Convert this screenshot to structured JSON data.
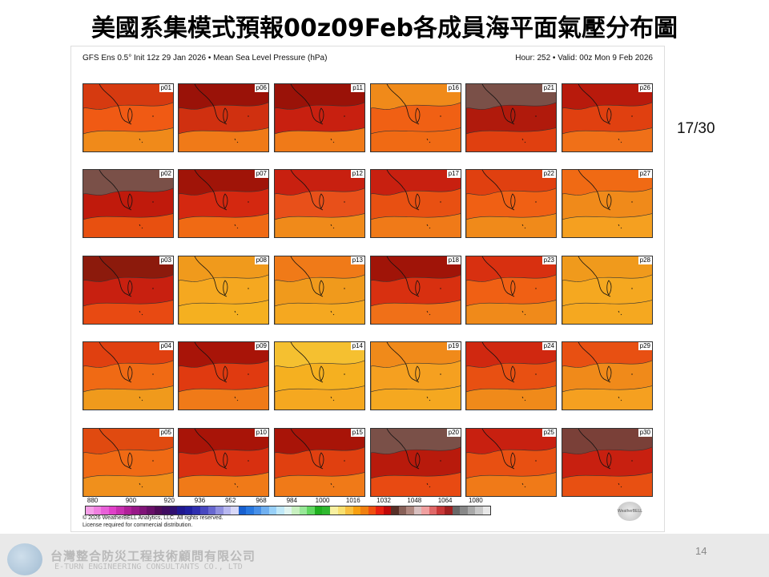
{
  "slide": {
    "title": "美國系集模式預報00z09Feb各成員海平面氣壓分布圖",
    "counter": "17/30",
    "page_number": "14"
  },
  "chart": {
    "header_left": "GFS Ens 0.5° Init 12z 29 Jan 2026 • Mean Sea Level Pressure (hPa)",
    "header_right": "Hour: 252 • Valid: 00z Mon 9 Feb 2026",
    "panels": [
      {
        "label": "p01",
        "colors": [
          "#d63a10",
          "#f05a14",
          "#f08a1a"
        ]
      },
      {
        "label": "p02",
        "colors": [
          "#7a5048",
          "#c01a0c",
          "#e85010"
        ]
      },
      {
        "label": "p03",
        "colors": [
          "#8c1a0c",
          "#c82010",
          "#e84a12"
        ]
      },
      {
        "label": "p04",
        "colors": [
          "#e04010",
          "#f06a14",
          "#f09a1c"
        ]
      },
      {
        "label": "p05",
        "colors": [
          "#e04a10",
          "#f06a14",
          "#f0901c"
        ]
      },
      {
        "label": "p06",
        "colors": [
          "#9a1208",
          "#d03010",
          "#f07a18"
        ]
      },
      {
        "label": "p07",
        "colors": [
          "#a01408",
          "#d42810",
          "#f06a14"
        ]
      },
      {
        "label": "p08",
        "colors": [
          "#f09a1c",
          "#f5a820",
          "#f5b020"
        ]
      },
      {
        "label": "p09",
        "colors": [
          "#a81408",
          "#e03a10",
          "#f07a18"
        ]
      },
      {
        "label": "p10",
        "colors": [
          "#a81408",
          "#d83010",
          "#f07a18"
        ]
      },
      {
        "label": "p11",
        "colors": [
          "#9a1208",
          "#c82010",
          "#f07a18"
        ]
      },
      {
        "label": "p12",
        "colors": [
          "#c82010",
          "#e8501a",
          "#f08a1a"
        ]
      },
      {
        "label": "p13",
        "colors": [
          "#f07a18",
          "#f09a1c",
          "#f5a820"
        ]
      },
      {
        "label": "p14",
        "colors": [
          "#f5c030",
          "#f5b020",
          "#f5a820"
        ]
      },
      {
        "label": "p15",
        "colors": [
          "#a81408",
          "#e04010",
          "#f07a18"
        ]
      },
      {
        "label": "p16",
        "colors": [
          "#f08a1a",
          "#f06014",
          "#f06a14"
        ]
      },
      {
        "label": "p17",
        "colors": [
          "#c82010",
          "#e85012",
          "#f07a18"
        ]
      },
      {
        "label": "p18",
        "colors": [
          "#a01408",
          "#d83010",
          "#f07018"
        ]
      },
      {
        "label": "p19",
        "colors": [
          "#f08a1a",
          "#f5a020",
          "#f5a820"
        ]
      },
      {
        "label": "p20",
        "colors": [
          "#7a5048",
          "#b81a0c",
          "#e84a12"
        ]
      },
      {
        "label": "p21",
        "colors": [
          "#7a5048",
          "#b01a0c",
          "#e04010"
        ]
      },
      {
        "label": "p22",
        "colors": [
          "#e04010",
          "#f06014",
          "#f08a1a"
        ]
      },
      {
        "label": "p23",
        "colors": [
          "#d83010",
          "#f06014",
          "#f08a1a"
        ]
      },
      {
        "label": "p24",
        "colors": [
          "#d02810",
          "#e85012",
          "#f08a1a"
        ]
      },
      {
        "label": "p25",
        "colors": [
          "#c82010",
          "#e85012",
          "#f07a18"
        ]
      },
      {
        "label": "p26",
        "colors": [
          "#b81a0c",
          "#e04010",
          "#f07018"
        ]
      },
      {
        "label": "p27",
        "colors": [
          "#f06a14",
          "#f08a1a",
          "#f5a020"
        ]
      },
      {
        "label": "p28",
        "colors": [
          "#f09a1c",
          "#f5a820",
          "#f5a820"
        ]
      },
      {
        "label": "p29",
        "colors": [
          "#e85012",
          "#f08a1a",
          "#f5a020"
        ]
      },
      {
        "label": "p30",
        "colors": [
          "#7a4038",
          "#c82010",
          "#e85012"
        ]
      }
    ],
    "colorbar": {
      "tick_labels": [
        "880",
        "900",
        "920",
        "936",
        "952",
        "968",
        "984",
        "1000",
        "1016",
        "1032",
        "1048",
        "1064",
        "1080"
      ],
      "tick_values": [
        880,
        900,
        920,
        936,
        952,
        968,
        984,
        1000,
        1016,
        1032,
        1048,
        1064,
        1080
      ],
      "range": [
        876,
        1088
      ],
      "colors": [
        "#f5a0e8",
        "#f080e0",
        "#e860d8",
        "#e040c8",
        "#c830b0",
        "#b02098",
        "#981888",
        "#801478",
        "#681068",
        "#500c58",
        "#400c60",
        "#301070",
        "#201890",
        "#2020a0",
        "#3030b0",
        "#4848c0",
        "#6868d0",
        "#9090e0",
        "#b8b8f0",
        "#d8d8f8",
        "#1860d0",
        "#2878e0",
        "#4890e8",
        "#70b0f0",
        "#98d0f8",
        "#c0e8f8",
        "#e0f4f0",
        "#c8f0c0",
        "#98e898",
        "#60d860",
        "#20b020",
        "#30b830",
        "#f8f0a0",
        "#f8e070",
        "#f8c040",
        "#f8a010",
        "#f08010",
        "#f05010",
        "#e82010",
        "#c00808",
        "#583028",
        "#886058",
        "#b08880",
        "#d8c0c0",
        "#f0a0a0",
        "#e06868",
        "#c83838",
        "#a02020",
        "#686868",
        "#888888",
        "#a8a8a8",
        "#c8c8c8",
        "#e8e8e8"
      ]
    },
    "copyright_line1": "© 2026 WeatherBELL Analytics, LLC. All rights reserved.",
    "copyright_line2": "License required for commercial distribution.",
    "logo_text": "WeatherBELL"
  },
  "footer": {
    "company_cn": "台灣整合防災工程技術顧問有限公司",
    "company_en": "E-TURN ENGINEERING CONSULTANTS CO., LTD"
  }
}
